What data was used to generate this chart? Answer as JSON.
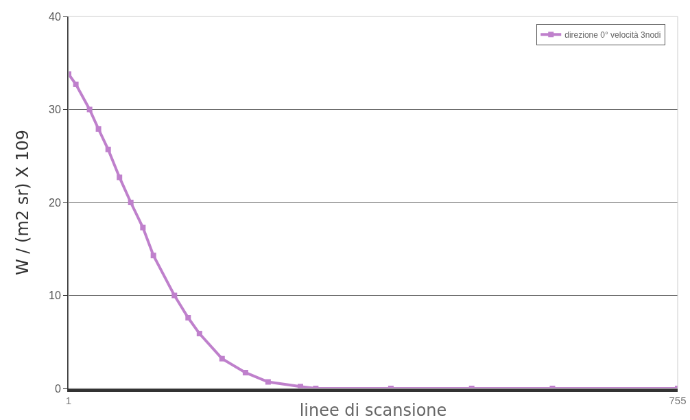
{
  "chart_data": {
    "type": "line",
    "xlabel": "linee di scansione",
    "ylabel": "W / (m2 sr) X 109",
    "x": [
      1,
      10,
      27,
      38,
      50,
      64,
      78,
      93,
      106,
      132,
      149,
      163,
      191,
      220,
      248,
      288,
      307,
      400,
      500,
      600,
      755
    ],
    "series": [
      {
        "name": "direzione 0° velocità 3nodi",
        "color": "#bf80cc",
        "values": [
          33.8,
          32.7,
          30,
          27.9,
          25.7,
          22.7,
          20,
          17.3,
          14.3,
          10,
          7.6,
          5.9,
          3.2,
          1.7,
          0.7,
          0.2,
          0,
          0,
          0,
          0,
          0
        ]
      }
    ],
    "xlim": [
      1,
      755
    ],
    "xticks": [
      1,
      755
    ],
    "ylim": [
      0,
      40
    ],
    "yticks": [
      0,
      10,
      20,
      30,
      40
    ],
    "grid": "y",
    "legend": "top right",
    "marker": "square",
    "line_style": "solid"
  }
}
